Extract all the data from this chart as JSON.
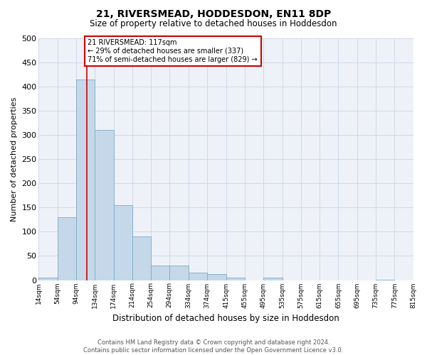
{
  "title": "21, RIVERSMEAD, HODDESDON, EN11 8DP",
  "subtitle": "Size of property relative to detached houses in Hoddesdon",
  "xlabel": "Distribution of detached houses by size in Hoddesdon",
  "ylabel": "Number of detached properties",
  "footer_line1": "Contains HM Land Registry data © Crown copyright and database right 2024.",
  "footer_line2": "Contains public sector information licensed under the Open Government Licence v3.0.",
  "property_label": "21 RIVERSMEAD: 117sqm",
  "annotation_line1": "← 29% of detached houses are smaller (337)",
  "annotation_line2": "71% of semi-detached houses are larger (829) →",
  "property_size": 117,
  "bin_edges": [
    14,
    54,
    94,
    134,
    174,
    214,
    254,
    294,
    334,
    374,
    415,
    455,
    495,
    535,
    575,
    615,
    655,
    695,
    735,
    775,
    815
  ],
  "bar_heights": [
    5,
    130,
    415,
    310,
    155,
    90,
    30,
    30,
    15,
    12,
    5,
    0,
    5,
    0,
    0,
    0,
    0,
    0,
    1,
    0
  ],
  "bar_color": "#c5d8ea",
  "bar_edge_color": "#7baac8",
  "vline_x": 117,
  "vline_color": "#cc0000",
  "annotation_box_color": "#cc0000",
  "ylim": [
    0,
    500
  ],
  "yticks": [
    0,
    50,
    100,
    150,
    200,
    250,
    300,
    350,
    400,
    450,
    500
  ],
  "tick_labels": [
    "14sqm",
    "54sqm",
    "94sqm",
    "134sqm",
    "174sqm",
    "214sqm",
    "254sqm",
    "294sqm",
    "334sqm",
    "374sqm",
    "415sqm",
    "455sqm",
    "495sqm",
    "535sqm",
    "575sqm",
    "615sqm",
    "655sqm",
    "695sqm",
    "735sqm",
    "775sqm",
    "815sqm"
  ],
  "grid_color": "#d0d8e8",
  "bg_color": "#eef2f8"
}
